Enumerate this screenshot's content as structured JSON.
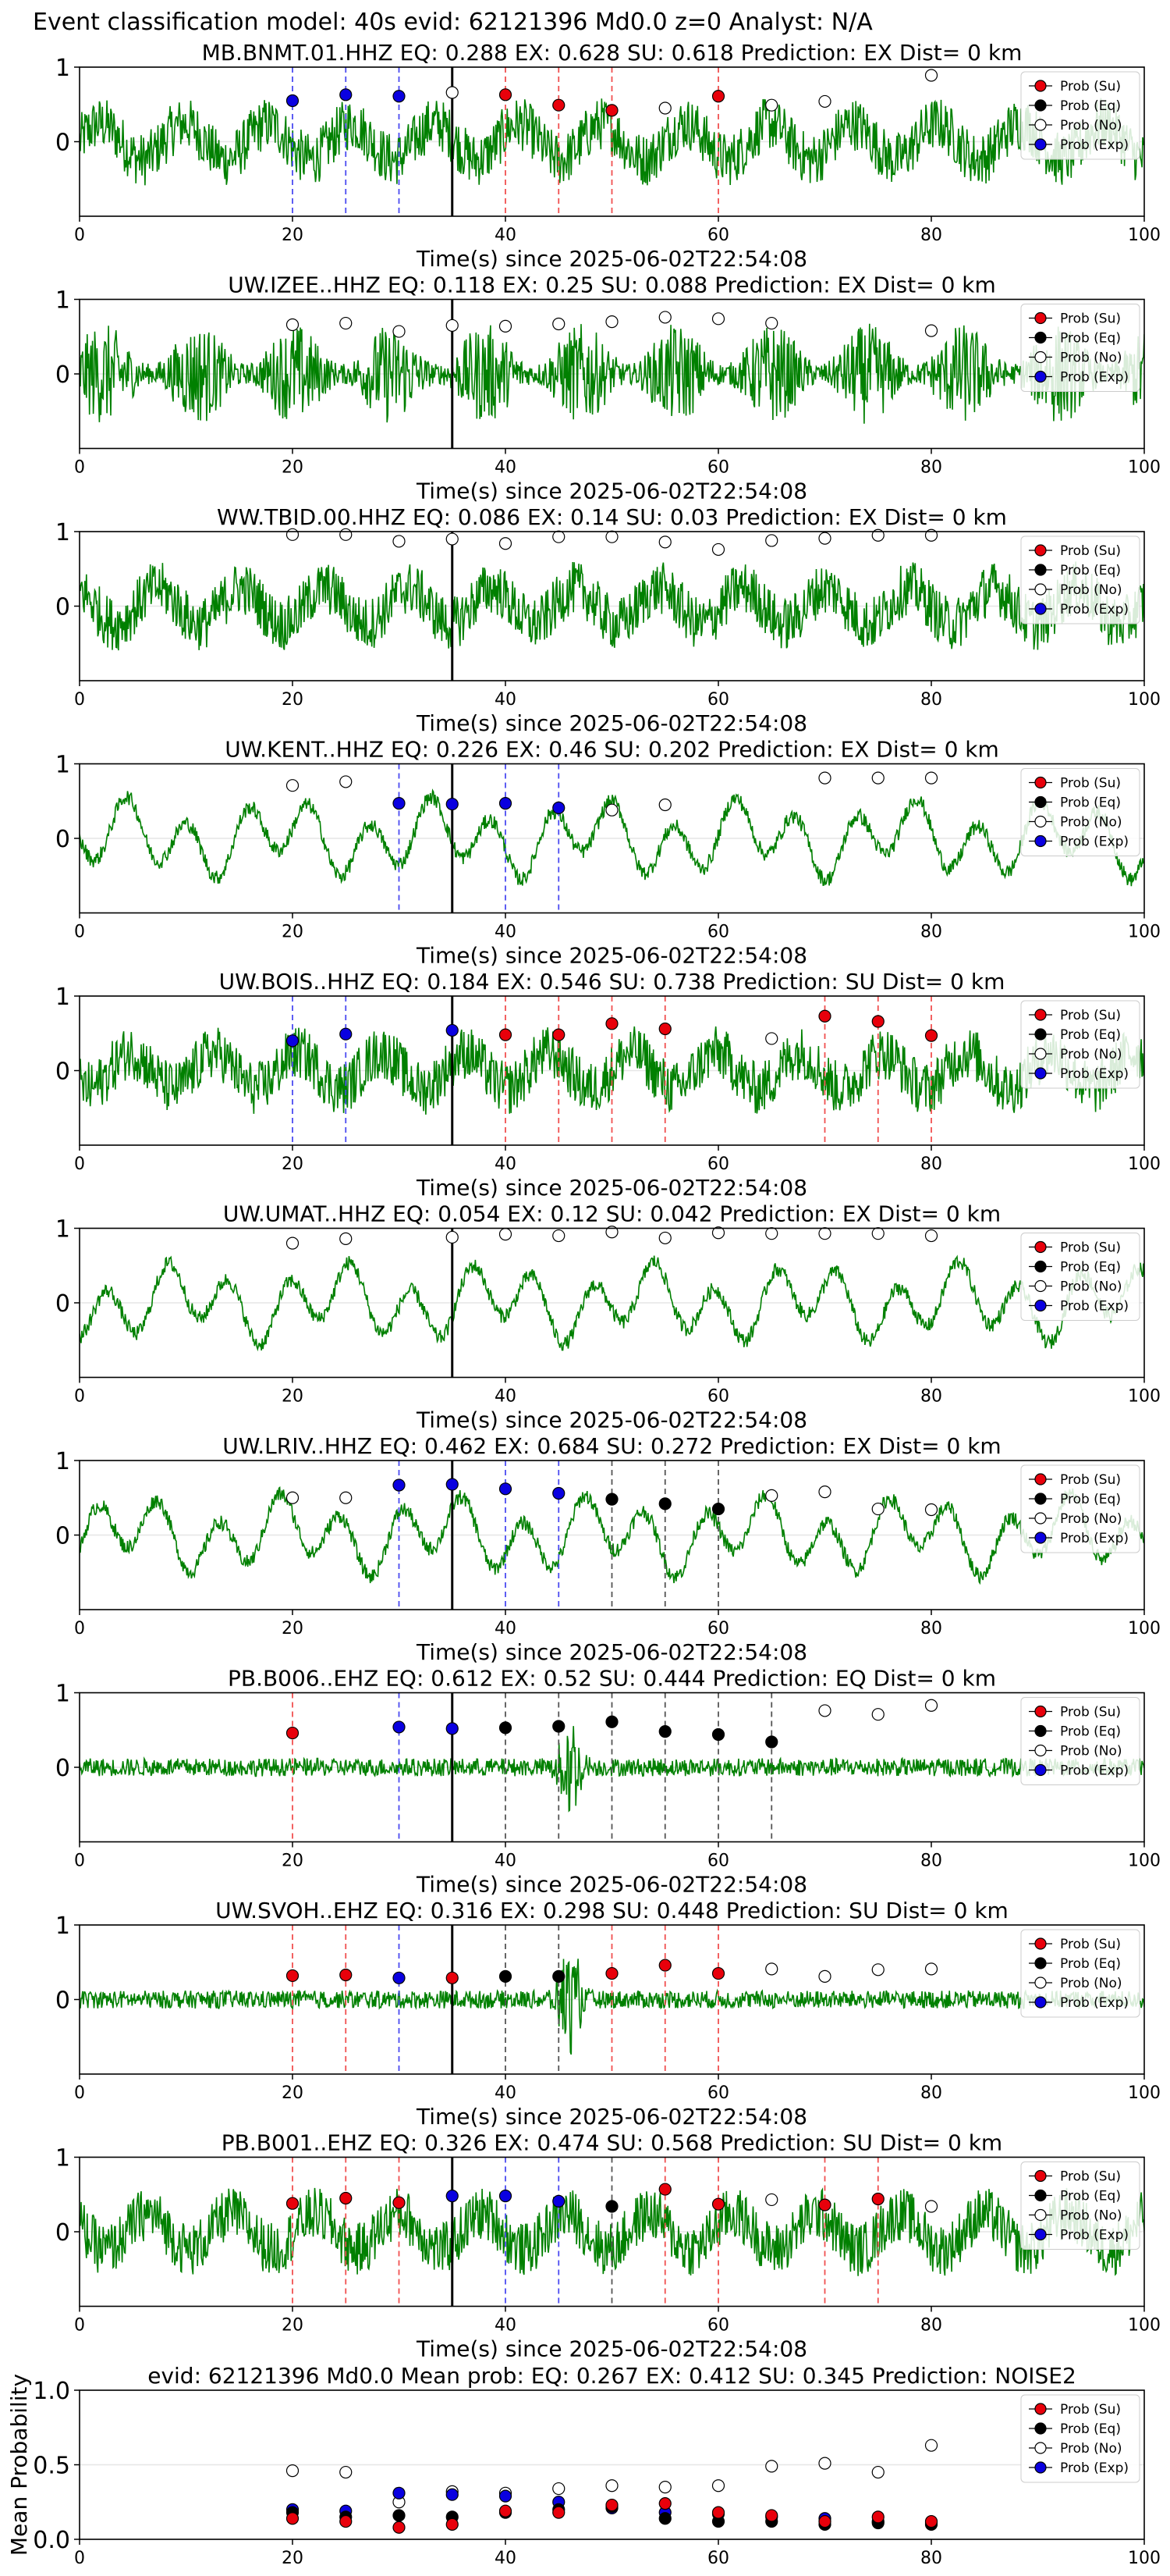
{
  "figure": {
    "suptitle": "Event classification model: 40s evid: 62121396 Md0.0 z=0 Analyst: N/A"
  },
  "legend": {
    "entries": [
      "Prob (Su)",
      "Prob (Eq)",
      "Prob (No)",
      "Prob (Exp)"
    ],
    "placement": "top-right"
  },
  "colors": {
    "su": "#e8000b",
    "eq": "#000000",
    "no": "#ffffff",
    "exp": "#0a00e0",
    "trace": "#008000",
    "su_line": "#f05050",
    "eq_line": "#555555",
    "exp_line": "#4b4bf0"
  },
  "chart_data": [
    {
      "type": "line",
      "title": "MB.BNMT.01.HHZ   EQ: 0.288  EX: 0.628  SU: 0.618   Prediction: EX    Dist= 0 km",
      "xlabel": "Time(s) since 2025-06-02T22:54:08",
      "xlim": [
        0,
        100
      ],
      "xticks": [
        "0",
        "20",
        "40",
        "60",
        "80",
        "100"
      ],
      "ylim": [
        -1,
        1
      ],
      "yticks": [
        "0",
        "1"
      ],
      "event_marker_x": 35,
      "waveform_style": "mixed",
      "points": [
        {
          "x": 20,
          "cls": "exp",
          "p": 0.55
        },
        {
          "x": 25,
          "cls": "exp",
          "p": 0.63
        },
        {
          "x": 30,
          "cls": "exp",
          "p": 0.61
        },
        {
          "x": 35,
          "cls": "no",
          "p": 0.66
        },
        {
          "x": 40,
          "cls": "su",
          "p": 0.63
        },
        {
          "x": 45,
          "cls": "su",
          "p": 0.49
        },
        {
          "x": 50,
          "cls": "su",
          "p": 0.42
        },
        {
          "x": 55,
          "cls": "no",
          "p": 0.45
        },
        {
          "x": 60,
          "cls": "su",
          "p": 0.61
        },
        {
          "x": 65,
          "cls": "no",
          "p": 0.49
        },
        {
          "x": 70,
          "cls": "no",
          "p": 0.54
        },
        {
          "x": 80,
          "cls": "no",
          "p": 0.89
        }
      ]
    },
    {
      "type": "line",
      "title": "UW.IZEE..HHZ   EQ: 0.118  EX: 0.25  SU: 0.088   Prediction: EX    Dist= 0 km",
      "xlabel": "Time(s) since 2025-06-02T22:54:08",
      "xlim": [
        0,
        100
      ],
      "xticks": [
        "0",
        "20",
        "40",
        "60",
        "80",
        "100"
      ],
      "ylim": [
        -1,
        1
      ],
      "yticks": [
        "0",
        "1"
      ],
      "event_marker_x": 35,
      "waveform_style": "dense",
      "points": [
        {
          "x": 20,
          "cls": "no",
          "p": 0.66
        },
        {
          "x": 25,
          "cls": "no",
          "p": 0.68
        },
        {
          "x": 30,
          "cls": "no",
          "p": 0.57
        },
        {
          "x": 35,
          "cls": "no",
          "p": 0.65
        },
        {
          "x": 40,
          "cls": "no",
          "p": 0.64
        },
        {
          "x": 45,
          "cls": "no",
          "p": 0.67
        },
        {
          "x": 50,
          "cls": "no",
          "p": 0.7
        },
        {
          "x": 55,
          "cls": "no",
          "p": 0.76
        },
        {
          "x": 60,
          "cls": "no",
          "p": 0.74
        },
        {
          "x": 65,
          "cls": "no",
          "p": 0.68
        },
        {
          "x": 80,
          "cls": "no",
          "p": 0.58
        }
      ]
    },
    {
      "type": "line",
      "title": "WW.TBID.00.HHZ   EQ: 0.086  EX: 0.14  SU: 0.03   Prediction: EX    Dist= 0 km",
      "xlabel": "Time(s) since 2025-06-02T22:54:08",
      "xlim": [
        0,
        100
      ],
      "xticks": [
        "0",
        "20",
        "40",
        "60",
        "80",
        "100"
      ],
      "ylim": [
        -1,
        1
      ],
      "yticks": [
        "0",
        "1"
      ],
      "event_marker_x": 35,
      "waveform_style": "mixed",
      "points": [
        {
          "x": 20,
          "cls": "no",
          "p": 0.96
        },
        {
          "x": 25,
          "cls": "no",
          "p": 0.96
        },
        {
          "x": 30,
          "cls": "no",
          "p": 0.87
        },
        {
          "x": 35,
          "cls": "no",
          "p": 0.9
        },
        {
          "x": 40,
          "cls": "no",
          "p": 0.84
        },
        {
          "x": 45,
          "cls": "no",
          "p": 0.93
        },
        {
          "x": 50,
          "cls": "no",
          "p": 0.93
        },
        {
          "x": 55,
          "cls": "no",
          "p": 0.86
        },
        {
          "x": 60,
          "cls": "no",
          "p": 0.76
        },
        {
          "x": 65,
          "cls": "no",
          "p": 0.88
        },
        {
          "x": 70,
          "cls": "no",
          "p": 0.91
        },
        {
          "x": 75,
          "cls": "no",
          "p": 0.95
        },
        {
          "x": 80,
          "cls": "no",
          "p": 0.95
        }
      ]
    },
    {
      "type": "line",
      "title": "UW.KENT..HHZ   EQ: 0.226  EX: 0.46  SU: 0.202   Prediction: EX    Dist= 0 km",
      "xlabel": "Time(s) since 2025-06-02T22:54:08",
      "xlim": [
        0,
        100
      ],
      "xticks": [
        "0",
        "20",
        "40",
        "60",
        "80",
        "100"
      ],
      "ylim": [
        -1,
        1
      ],
      "yticks": [
        "0",
        "1"
      ],
      "event_marker_x": 35,
      "waveform_style": "smooth",
      "points": [
        {
          "x": 20,
          "cls": "no",
          "p": 0.71
        },
        {
          "x": 25,
          "cls": "no",
          "p": 0.76
        },
        {
          "x": 30,
          "cls": "exp",
          "p": 0.47
        },
        {
          "x": 35,
          "cls": "exp",
          "p": 0.46
        },
        {
          "x": 40,
          "cls": "exp",
          "p": 0.47
        },
        {
          "x": 45,
          "cls": "exp",
          "p": 0.41
        },
        {
          "x": 50,
          "cls": "no",
          "p": 0.38
        },
        {
          "x": 55,
          "cls": "no",
          "p": 0.45
        },
        {
          "x": 70,
          "cls": "no",
          "p": 0.81
        },
        {
          "x": 75,
          "cls": "no",
          "p": 0.81
        },
        {
          "x": 80,
          "cls": "no",
          "p": 0.81
        }
      ]
    },
    {
      "type": "line",
      "title": "UW.BOIS..HHZ   EQ: 0.184  EX: 0.546  SU: 0.738   Prediction: SU    Dist= 0 km",
      "xlabel": "Time(s) since 2025-06-02T22:54:08",
      "xlim": [
        0,
        100
      ],
      "xticks": [
        "0",
        "20",
        "40",
        "60",
        "80",
        "100"
      ],
      "ylim": [
        -1,
        1
      ],
      "yticks": [
        "0",
        "1"
      ],
      "event_marker_x": 35,
      "waveform_style": "mixed",
      "points": [
        {
          "x": 20,
          "cls": "exp",
          "p": 0.4
        },
        {
          "x": 25,
          "cls": "exp",
          "p": 0.49
        },
        {
          "x": 35,
          "cls": "exp",
          "p": 0.54
        },
        {
          "x": 40,
          "cls": "su",
          "p": 0.48
        },
        {
          "x": 45,
          "cls": "su",
          "p": 0.48
        },
        {
          "x": 50,
          "cls": "su",
          "p": 0.63
        },
        {
          "x": 55,
          "cls": "su",
          "p": 0.56
        },
        {
          "x": 65,
          "cls": "no",
          "p": 0.43
        },
        {
          "x": 70,
          "cls": "su",
          "p": 0.73
        },
        {
          "x": 75,
          "cls": "su",
          "p": 0.66
        },
        {
          "x": 80,
          "cls": "su",
          "p": 0.47
        }
      ]
    },
    {
      "type": "line",
      "title": "UW.UMAT..HHZ   EQ: 0.054  EX: 0.12  SU: 0.042   Prediction: EX    Dist= 0 km",
      "xlabel": "Time(s) since 2025-06-02T22:54:08",
      "xlim": [
        0,
        100
      ],
      "xticks": [
        "0",
        "20",
        "40",
        "60",
        "80",
        "100"
      ],
      "ylim": [
        -1,
        1
      ],
      "yticks": [
        "0",
        "1"
      ],
      "event_marker_x": 35,
      "waveform_style": "smooth",
      "points": [
        {
          "x": 20,
          "cls": "no",
          "p": 0.8
        },
        {
          "x": 25,
          "cls": "no",
          "p": 0.86
        },
        {
          "x": 35,
          "cls": "no",
          "p": 0.88
        },
        {
          "x": 40,
          "cls": "no",
          "p": 0.92
        },
        {
          "x": 45,
          "cls": "no",
          "p": 0.9
        },
        {
          "x": 50,
          "cls": "no",
          "p": 0.95
        },
        {
          "x": 55,
          "cls": "no",
          "p": 0.87
        },
        {
          "x": 60,
          "cls": "no",
          "p": 0.94
        },
        {
          "x": 65,
          "cls": "no",
          "p": 0.93
        },
        {
          "x": 70,
          "cls": "no",
          "p": 0.93
        },
        {
          "x": 75,
          "cls": "no",
          "p": 0.93
        },
        {
          "x": 80,
          "cls": "no",
          "p": 0.9
        }
      ]
    },
    {
      "type": "line",
      "title": "UW.LRIV..HHZ   EQ: 0.462  EX: 0.684  SU: 0.272   Prediction: EX    Dist= 0 km",
      "xlabel": "Time(s) since 2025-06-02T22:54:08",
      "xlim": [
        0,
        100
      ],
      "xticks": [
        "0",
        "20",
        "40",
        "60",
        "80",
        "100"
      ],
      "ylim": [
        -1,
        1
      ],
      "yticks": [
        "0",
        "1"
      ],
      "event_marker_x": 35,
      "waveform_style": "smooth",
      "points": [
        {
          "x": 20,
          "cls": "no",
          "p": 0.5
        },
        {
          "x": 25,
          "cls": "no",
          "p": 0.5
        },
        {
          "x": 30,
          "cls": "exp",
          "p": 0.67
        },
        {
          "x": 35,
          "cls": "exp",
          "p": 0.68
        },
        {
          "x": 40,
          "cls": "exp",
          "p": 0.62
        },
        {
          "x": 45,
          "cls": "exp",
          "p": 0.56
        },
        {
          "x": 50,
          "cls": "eq",
          "p": 0.48
        },
        {
          "x": 55,
          "cls": "eq",
          "p": 0.42
        },
        {
          "x": 60,
          "cls": "eq",
          "p": 0.35
        },
        {
          "x": 65,
          "cls": "no",
          "p": 0.53
        },
        {
          "x": 70,
          "cls": "no",
          "p": 0.58
        },
        {
          "x": 75,
          "cls": "no",
          "p": 0.35
        },
        {
          "x": 80,
          "cls": "no",
          "p": 0.34
        }
      ]
    },
    {
      "type": "line",
      "title": "PB.B006..EHZ   EQ: 0.612  EX: 0.52  SU: 0.444   Prediction: EQ    Dist= 0 km",
      "xlabel": "Time(s) since 2025-06-02T22:54:08",
      "xlim": [
        0,
        100
      ],
      "xticks": [
        "0",
        "20",
        "40",
        "60",
        "80",
        "100"
      ],
      "ylim": [
        -1,
        1
      ],
      "yticks": [
        "0",
        "1"
      ],
      "event_marker_x": 35,
      "waveform_style": "quiet",
      "points": [
        {
          "x": 20,
          "cls": "su",
          "p": 0.46
        },
        {
          "x": 30,
          "cls": "exp",
          "p": 0.54
        },
        {
          "x": 35,
          "cls": "exp",
          "p": 0.52
        },
        {
          "x": 40,
          "cls": "eq",
          "p": 0.53
        },
        {
          "x": 45,
          "cls": "eq",
          "p": 0.55
        },
        {
          "x": 50,
          "cls": "eq",
          "p": 0.61
        },
        {
          "x": 55,
          "cls": "eq",
          "p": 0.48
        },
        {
          "x": 60,
          "cls": "eq",
          "p": 0.44
        },
        {
          "x": 65,
          "cls": "eq",
          "p": 0.34
        },
        {
          "x": 70,
          "cls": "no",
          "p": 0.76
        },
        {
          "x": 75,
          "cls": "no",
          "p": 0.71
        },
        {
          "x": 80,
          "cls": "no",
          "p": 0.83
        }
      ]
    },
    {
      "type": "line",
      "title": "UW.SVOH..EHZ   EQ: 0.316  EX: 0.298  SU: 0.448   Prediction: SU    Dist= 0 km",
      "xlabel": "Time(s) since 2025-06-02T22:54:08",
      "xlim": [
        0,
        100
      ],
      "xticks": [
        "0",
        "20",
        "40",
        "60",
        "80",
        "100"
      ],
      "ylim": [
        -1,
        1
      ],
      "yticks": [
        "0",
        "1"
      ],
      "event_marker_x": 35,
      "waveform_style": "quiet",
      "points": [
        {
          "x": 20,
          "cls": "su",
          "p": 0.32
        },
        {
          "x": 25,
          "cls": "su",
          "p": 0.33
        },
        {
          "x": 30,
          "cls": "exp",
          "p": 0.29
        },
        {
          "x": 35,
          "cls": "su",
          "p": 0.29
        },
        {
          "x": 40,
          "cls": "eq",
          "p": 0.31
        },
        {
          "x": 45,
          "cls": "eq",
          "p": 0.31
        },
        {
          "x": 50,
          "cls": "su",
          "p": 0.35
        },
        {
          "x": 55,
          "cls": "su",
          "p": 0.46
        },
        {
          "x": 60,
          "cls": "su",
          "p": 0.35
        },
        {
          "x": 65,
          "cls": "no",
          "p": 0.41
        },
        {
          "x": 70,
          "cls": "no",
          "p": 0.31
        },
        {
          "x": 75,
          "cls": "no",
          "p": 0.4
        },
        {
          "x": 80,
          "cls": "no",
          "p": 0.41
        }
      ]
    },
    {
      "type": "line",
      "title": "PB.B001..EHZ   EQ: 0.326  EX: 0.474  SU: 0.568   Prediction: SU    Dist= 0 km",
      "xlabel": "Time(s) since 2025-06-02T22:54:08",
      "xlim": [
        0,
        100
      ],
      "xticks": [
        "0",
        "20",
        "40",
        "60",
        "80",
        "100"
      ],
      "ylim": [
        -1,
        1
      ],
      "yticks": [
        "0",
        "1"
      ],
      "event_marker_x": 35,
      "waveform_style": "mixed",
      "points": [
        {
          "x": 20,
          "cls": "su",
          "p": 0.38
        },
        {
          "x": 25,
          "cls": "su",
          "p": 0.45
        },
        {
          "x": 30,
          "cls": "su",
          "p": 0.39
        },
        {
          "x": 35,
          "cls": "exp",
          "p": 0.48
        },
        {
          "x": 40,
          "cls": "exp",
          "p": 0.48
        },
        {
          "x": 45,
          "cls": "exp",
          "p": 0.41
        },
        {
          "x": 50,
          "cls": "eq",
          "p": 0.34
        },
        {
          "x": 55,
          "cls": "su",
          "p": 0.57
        },
        {
          "x": 60,
          "cls": "su",
          "p": 0.37
        },
        {
          "x": 65,
          "cls": "no",
          "p": 0.43
        },
        {
          "x": 70,
          "cls": "su",
          "p": 0.36
        },
        {
          "x": 75,
          "cls": "su",
          "p": 0.44
        },
        {
          "x": 80,
          "cls": "no",
          "p": 0.34
        }
      ]
    },
    {
      "type": "scatter",
      "title": "evid: 62121396  Md0.0   Mean prob:   EQ: 0.267  EX: 0.412  SU: 0.345   Prediction: NOISE2",
      "ylabel": "Mean Probability",
      "xlim": [
        0,
        100
      ],
      "xticks": [
        "0",
        "20",
        "40",
        "60",
        "80",
        "100"
      ],
      "ylim": [
        0,
        1
      ],
      "yticks": [
        "0.0",
        "0.5",
        "1.0"
      ],
      "x": [
        20,
        25,
        30,
        35,
        40,
        45,
        50,
        55,
        60,
        65,
        70,
        75,
        80
      ],
      "series": [
        {
          "cls": "no",
          "name": "Prob (No)",
          "values": [
            0.46,
            0.45,
            0.25,
            0.32,
            0.31,
            0.34,
            0.36,
            0.35,
            0.36,
            0.49,
            0.51,
            0.45,
            0.63
          ]
        },
        {
          "cls": "exp",
          "name": "Prob (Exp)",
          "values": [
            0.2,
            0.19,
            0.31,
            0.3,
            0.29,
            0.25,
            0.21,
            0.18,
            0.17,
            0.15,
            0.14,
            0.12,
            0.11
          ]
        },
        {
          "cls": "eq",
          "name": "Prob (Eq)",
          "values": [
            0.18,
            0.15,
            0.16,
            0.15,
            0.18,
            0.2,
            0.22,
            0.14,
            0.12,
            0.12,
            0.1,
            0.11,
            0.1
          ]
        },
        {
          "cls": "su",
          "name": "Prob (Su)",
          "values": [
            0.14,
            0.12,
            0.08,
            0.1,
            0.19,
            0.18,
            0.23,
            0.24,
            0.18,
            0.16,
            0.12,
            0.15,
            0.12
          ]
        }
      ]
    }
  ]
}
